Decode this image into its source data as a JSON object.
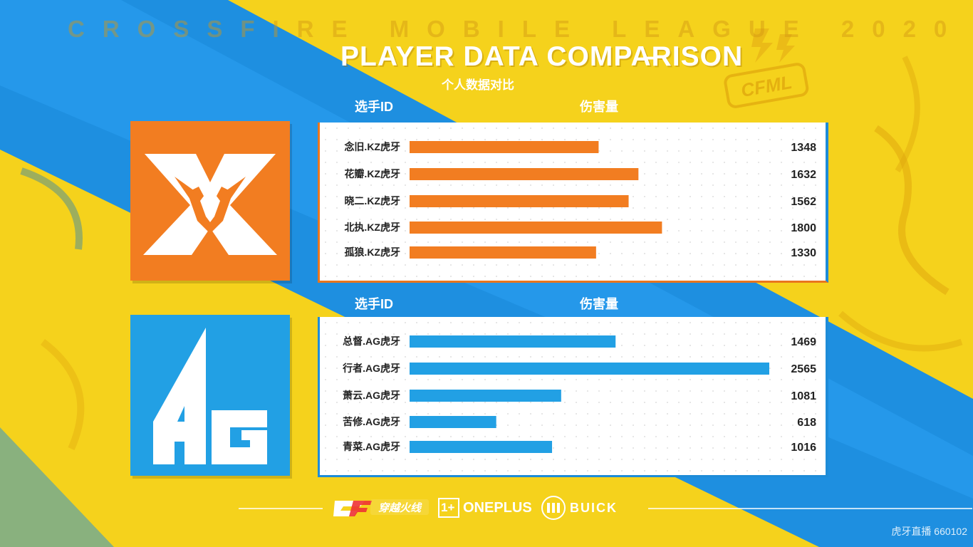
{
  "header": {
    "league_text": "CROSSFIRE MOBILE LEAGUE 2020",
    "title": "PLAYER DATA COMPARISON",
    "title_dash": "–",
    "subtitle": "个人数据对比",
    "cfml_badge": "CFML"
  },
  "colors": {
    "kz_accent": "#f27d21",
    "ag_accent": "#22a0e4",
    "background": "#f5d21c"
  },
  "chart_data": [
    {
      "type": "bar",
      "team": "KZ",
      "xlabel": "选手ID",
      "ylabel": "伤害量",
      "categories": [
        "念旧.KZ虎牙",
        "花瓣.KZ虎牙",
        "晓二.KZ虎牙",
        "北执.KZ虎牙",
        "孤狼.KZ虎牙"
      ],
      "values": [
        1348,
        1632,
        1562,
        1800,
        1330
      ],
      "value_labels": [
        "1348",
        "1632",
        "1562",
        "1800",
        "1330"
      ],
      "orientation": "horizontal",
      "color": "#f27d21",
      "xlim": [
        0,
        2565
      ]
    },
    {
      "type": "bar",
      "team": "AG",
      "xlabel": "选手ID",
      "ylabel": "伤害量",
      "categories": [
        "总督.AG虎牙",
        "行者.AG虎牙",
        "萧云.AG虎牙",
        "苦修.AG虎牙",
        "青菜.AG虎牙"
      ],
      "values": [
        1469,
        2565,
        1081,
        618,
        1016
      ],
      "value_labels": [
        "1469",
        "2565",
        "1081",
        "618",
        "1016"
      ],
      "orientation": "horizontal",
      "color": "#22a0e4",
      "xlim": [
        0,
        2565
      ]
    }
  ],
  "logos": {
    "kz_logo": "kz-dragon-logo",
    "ag_logo": "AG"
  },
  "footer": {
    "cf_logo": "穿越火线",
    "oneplus": "ONEPLUS",
    "oneplus_mark": "1+",
    "buick": "BUICK"
  },
  "watermark": "虎牙直播 660102"
}
